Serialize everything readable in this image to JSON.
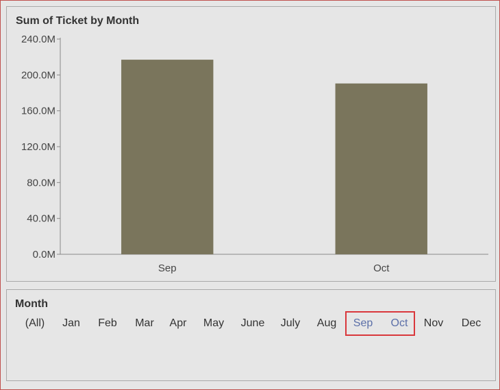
{
  "chart_title": "Sum of Ticket by Month",
  "filter": {
    "title": "Month",
    "items": [
      {
        "label": "(All)",
        "selected": false
      },
      {
        "label": "Jan",
        "selected": false
      },
      {
        "label": "Feb",
        "selected": false
      },
      {
        "label": "Mar",
        "selected": false
      },
      {
        "label": "Apr",
        "selected": false
      },
      {
        "label": "May",
        "selected": false
      },
      {
        "label": "June",
        "selected": false
      },
      {
        "label": "July",
        "selected": false
      },
      {
        "label": "Aug",
        "selected": false
      },
      {
        "label": "Sep",
        "selected": true
      },
      {
        "label": "Oct",
        "selected": true
      },
      {
        "label": "Nov",
        "selected": false
      },
      {
        "label": "Dec",
        "selected": false
      }
    ]
  },
  "chart_data": {
    "type": "bar",
    "title": "Sum of Ticket by Month",
    "categories": [
      "Sep",
      "Oct"
    ],
    "values": [
      217000000,
      190500000
    ],
    "ylim": [
      0,
      240000000
    ],
    "yticks": [
      0,
      40000000,
      80000000,
      120000000,
      160000000,
      200000000,
      240000000
    ],
    "ytick_labels": [
      "0.0M",
      "40.0M",
      "80.0M",
      "120.0M",
      "160.0M",
      "200.0M",
      "240.0M"
    ],
    "bar_color": "#7a755c",
    "grid": false,
    "legend": "none"
  }
}
